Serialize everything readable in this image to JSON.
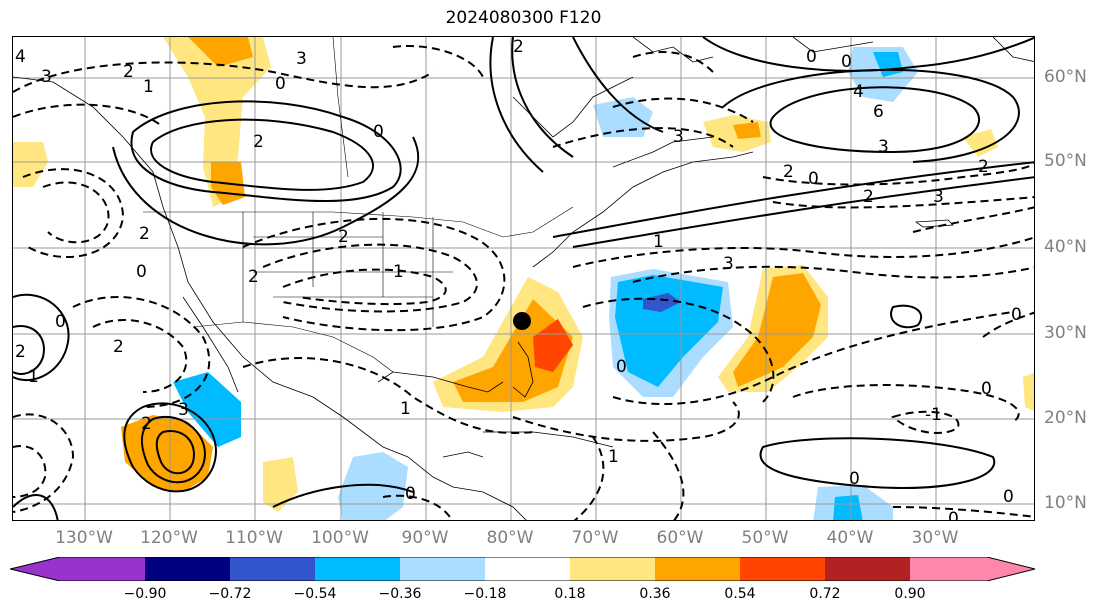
{
  "title": "2024080300 F120",
  "lon_labels": [
    "130°W",
    "120°W",
    "110°W",
    "100°W",
    "90°W",
    "80°W",
    "70°W",
    "60°W",
    "50°W",
    "40°W",
    "30°W"
  ],
  "lat_labels": [
    "60°N",
    "50°N",
    "40°N",
    "30°N",
    "20°N",
    "10°N"
  ],
  "colorbar": {
    "ticks": [
      "−0.90",
      "−0.72",
      "−0.54",
      "−0.36",
      "−0.18",
      "0.18",
      "0.36",
      "0.54",
      "0.72",
      "0.90"
    ],
    "colors": [
      "#9933cc",
      "#000080",
      "#3355cc",
      "#00bbff",
      "#aaddff",
      "#ffffff",
      "#ffe680",
      "#ffa500",
      "#ff4500",
      "#b22222",
      "#ff88aa"
    ]
  },
  "contour_labels": [
    "4",
    "3",
    "2",
    "1",
    "0",
    "2",
    "0",
    "2",
    "3",
    "3",
    "0",
    "0",
    "6",
    "4",
    "3",
    "2",
    "0",
    "2",
    "3",
    "1",
    "3",
    "2",
    "0",
    "2",
    "1",
    "2",
    "0",
    "3",
    "2",
    "0",
    "1",
    "0",
    "1",
    "2",
    "2",
    "0",
    "0",
    "1",
    "0",
    "-1",
    "2",
    "0",
    "0"
  ],
  "marker": "storm-center"
}
